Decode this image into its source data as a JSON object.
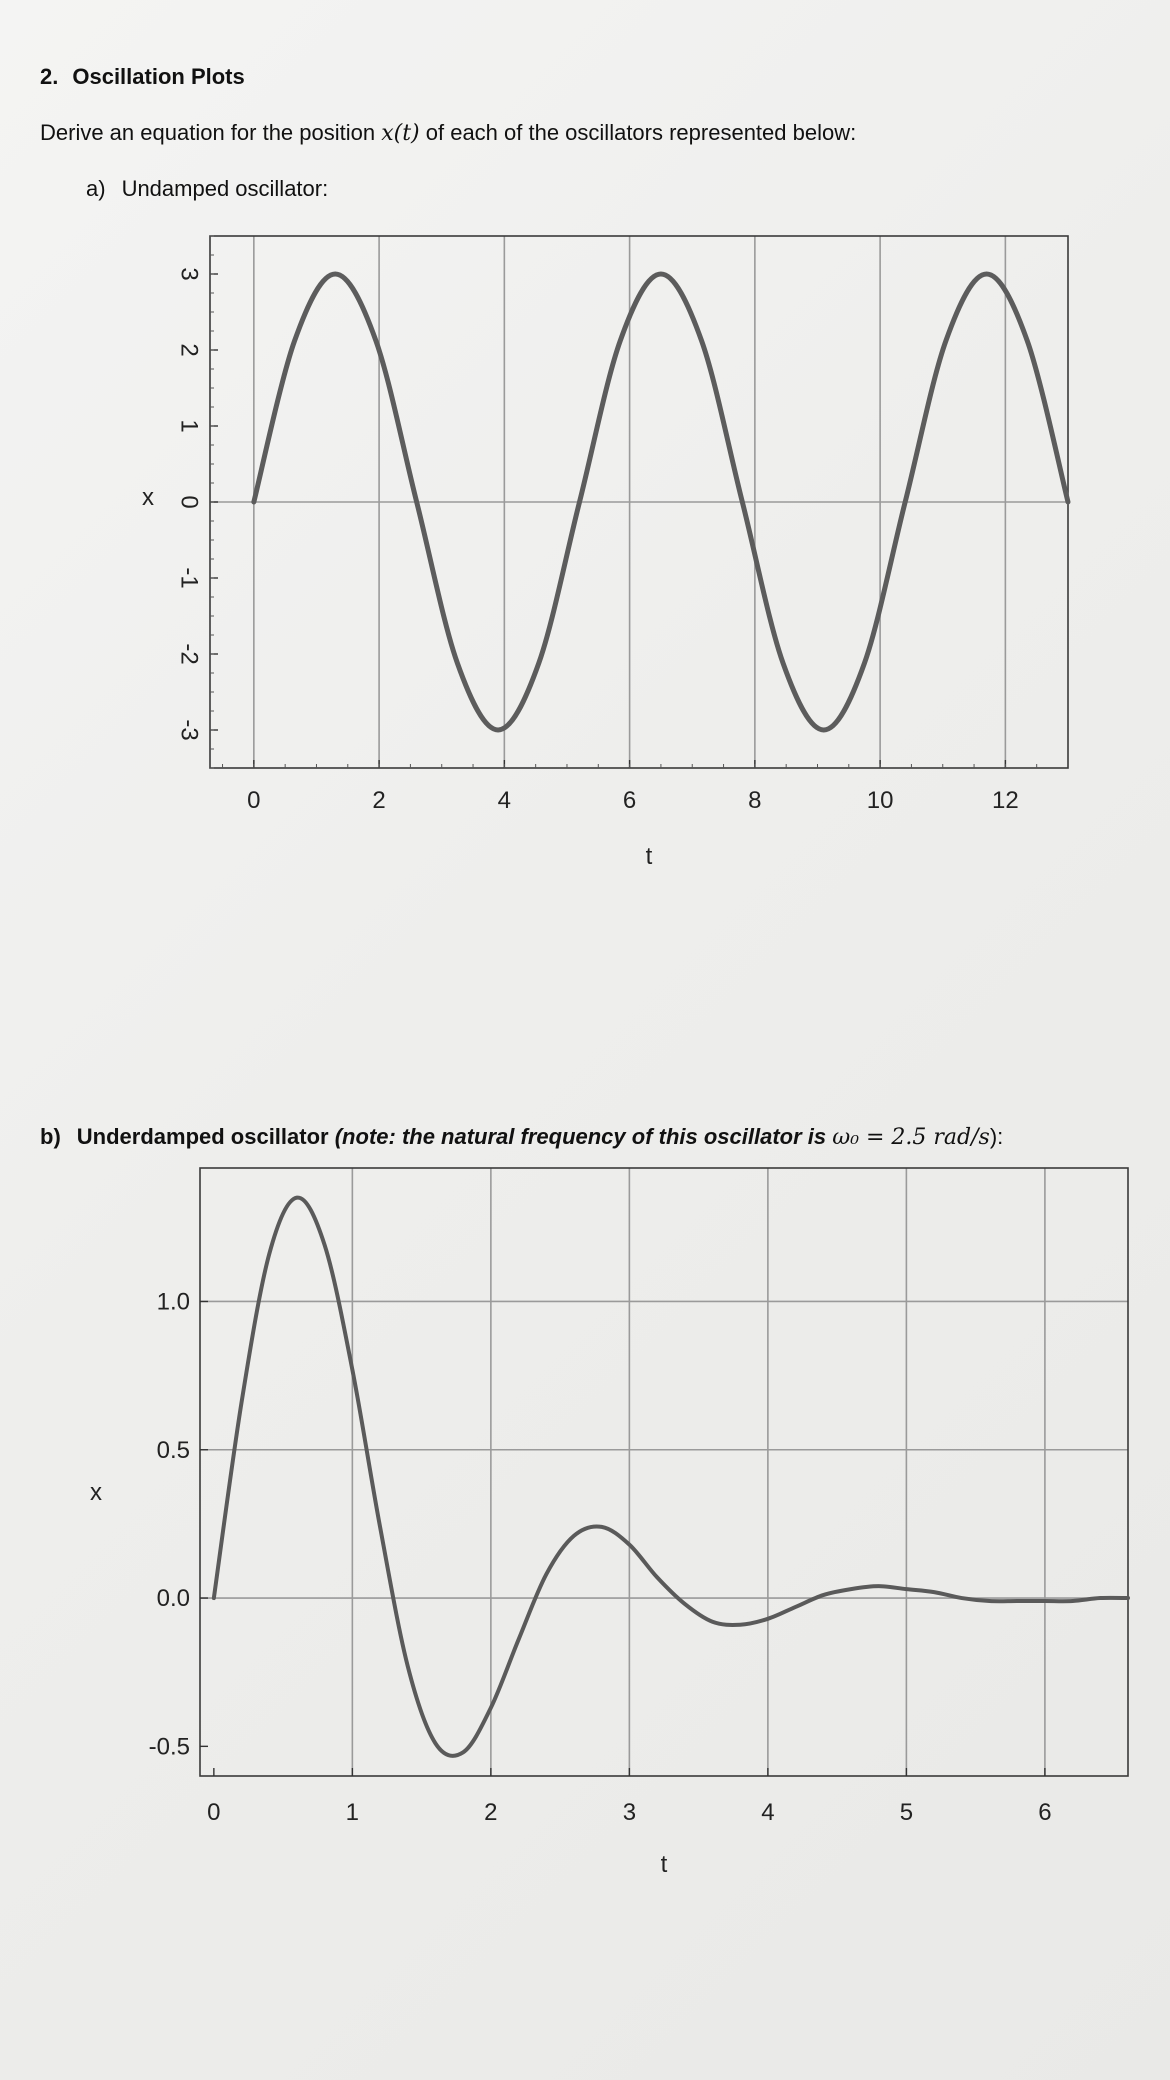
{
  "question": {
    "number": "2.",
    "title": "Oscillation Plots",
    "intro_prefix": "Derive an equation for the position ",
    "intro_math": "x(t)",
    "intro_suffix": " of each of the oscillators represented below:",
    "part_a_label": "a)",
    "part_a_title": "Undamped oscillator:",
    "part_b_label": "b)",
    "part_b_title": "Underdamped oscillator",
    "part_b_note_prefix": "(note: the natural frequency of this oscillator is ",
    "part_b_note_math": "ω₀ = 2.5 rad/s",
    "part_b_note_suffix": "):"
  },
  "chart_data": [
    {
      "type": "line",
      "title": "",
      "xlabel": "t",
      "ylabel": "x",
      "xlim": [
        -0.7,
        13.0
      ],
      "ylim": [
        -3.5,
        3.5
      ],
      "xticks": [
        0,
        2,
        4,
        6,
        8,
        10,
        12
      ],
      "yticks": [
        -3,
        -2,
        -1,
        0,
        1,
        2,
        3
      ],
      "grid": true,
      "series": [
        {
          "x": [
            0,
            0.65,
            1.3,
            1.95,
            2.6,
            3.25,
            3.9,
            4.55,
            5.2,
            5.85,
            6.5,
            7.15,
            7.8,
            8.45,
            9.1,
            9.75,
            10.4,
            11.05,
            11.7,
            12.35,
            13.0
          ],
          "y": [
            0,
            2.12,
            3.0,
            2.12,
            0,
            -2.12,
            -3.0,
            -2.12,
            0,
            2.12,
            3.0,
            2.12,
            0,
            -2.12,
            -3.0,
            -2.12,
            0,
            2.12,
            3.0,
            2.12,
            0
          ]
        }
      ]
    },
    {
      "type": "line",
      "title": "",
      "xlabel": "t",
      "ylabel": "x",
      "xlim": [
        -0.1,
        6.6
      ],
      "ylim": [
        -0.6,
        1.45
      ],
      "xticks": [
        0,
        1,
        2,
        3,
        4,
        5,
        6
      ],
      "yticks": [
        -0.5,
        0.0,
        0.5,
        1.0
      ],
      "ytick_labels": [
        "-0.5",
        "0.0",
        "0.5",
        "1.0"
      ],
      "grid": true,
      "series": [
        {
          "x": [
            0,
            0.2,
            0.4,
            0.6,
            0.8,
            1.0,
            1.2,
            1.4,
            1.6,
            1.8,
            2.0,
            2.2,
            2.4,
            2.6,
            2.8,
            3.0,
            3.2,
            3.4,
            3.6,
            3.8,
            4.0,
            4.2,
            4.4,
            4.6,
            4.8,
            5.0,
            5.2,
            5.4,
            5.6,
            5.8,
            6.0,
            6.2,
            6.4,
            6.6
          ],
          "y": [
            0,
            0.66,
            1.16,
            1.35,
            1.19,
            0.77,
            0.24,
            -0.23,
            -0.49,
            -0.52,
            -0.37,
            -0.14,
            0.08,
            0.21,
            0.24,
            0.18,
            0.07,
            -0.02,
            -0.08,
            -0.09,
            -0.07,
            -0.03,
            0.01,
            0.03,
            0.04,
            0.03,
            0.02,
            0.0,
            -0.01,
            -0.01,
            -0.01,
            -0.01,
            0.0,
            0.0
          ]
        }
      ]
    }
  ]
}
